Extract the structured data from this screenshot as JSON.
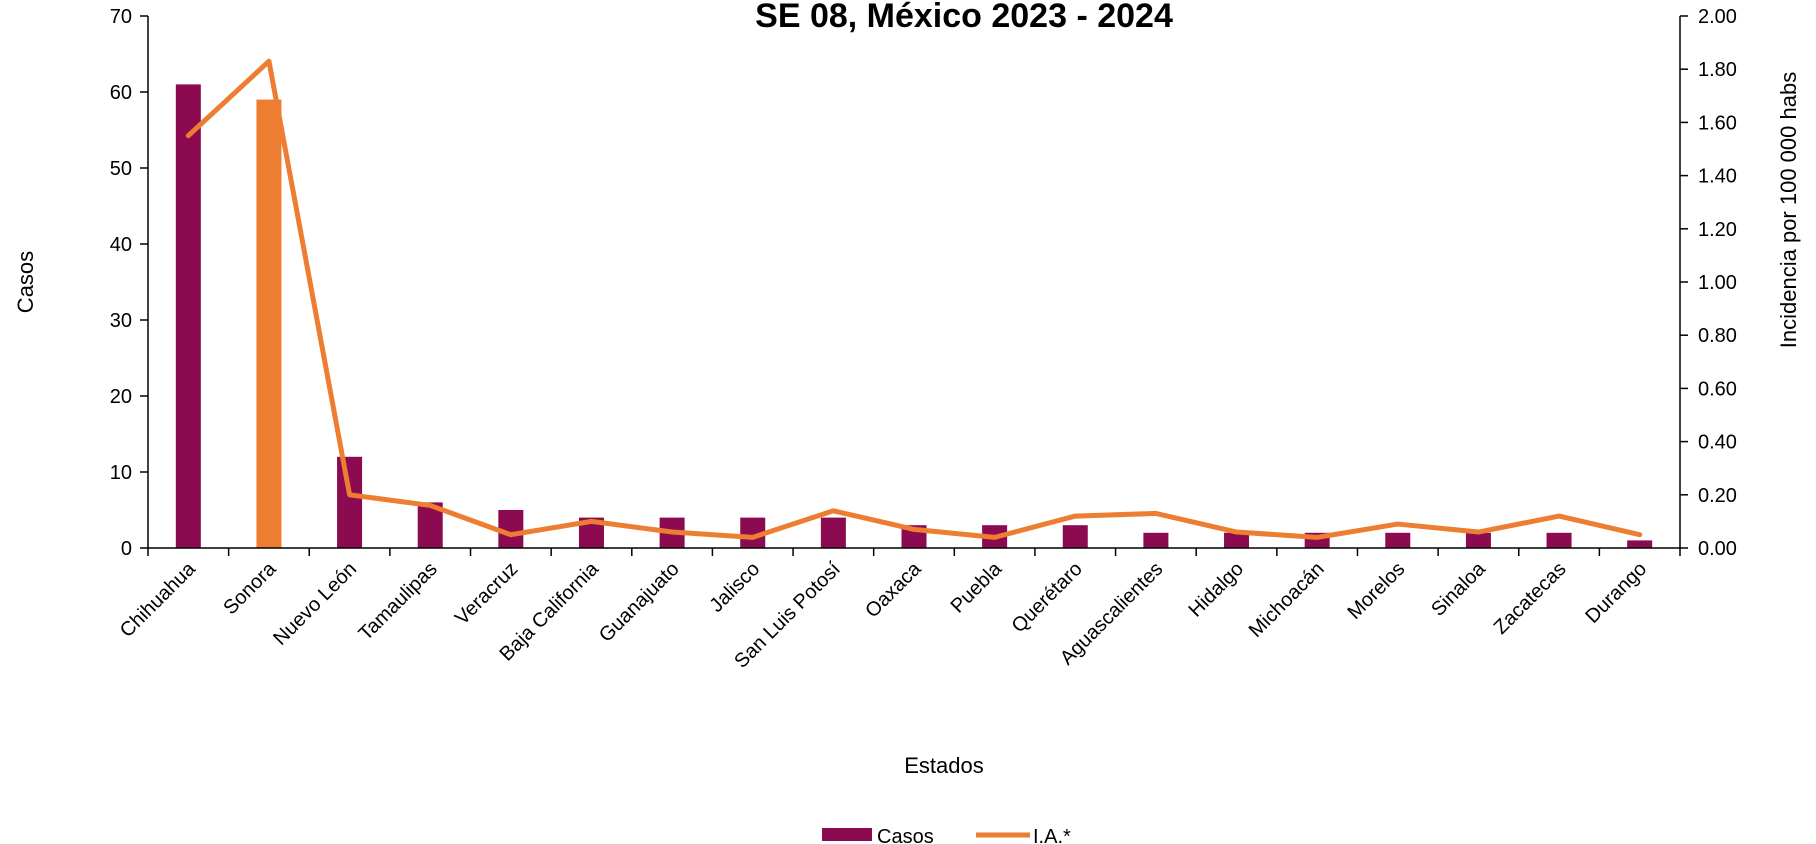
{
  "chart_data": {
    "type": "bar",
    "title": "SE 08, México 2023 - 2024",
    "xlabel": "Estados",
    "ylabel": "Casos",
    "y2label": "Incidencia por 100 000 habs",
    "ylim": [
      0,
      70
    ],
    "y2lim": [
      0,
      2.0
    ],
    "yticks": [
      "0",
      "10",
      "20",
      "30",
      "40",
      "50",
      "60",
      "70"
    ],
    "y2ticks": [
      "0.00",
      "0.20",
      "0.40",
      "0.60",
      "0.80",
      "1.00",
      "1.20",
      "1.40",
      "1.60",
      "1.80",
      "2.00"
    ],
    "categories": [
      "Chihuahua",
      "Sonora",
      "Nuevo León",
      "Tamaulipas",
      "Veracruz",
      "Baja California",
      "Guanajuato",
      "Jalisco",
      "San Luis Potosí",
      "Oaxaca",
      "Puebla",
      "Querétaro",
      "Aguascalientes",
      "Hidalgo",
      "Michoacán",
      "Morelos",
      "Sinaloa",
      "Zacatecas",
      "Durango"
    ],
    "series": [
      {
        "name": "Casos",
        "type": "bar",
        "axis": "left",
        "color": "#8B0A50",
        "highlight_color": "#ED7D31",
        "highlight_index": 1,
        "values": [
          61,
          59,
          12,
          6,
          5,
          4,
          4,
          4,
          4,
          3,
          3,
          3,
          2,
          2,
          2,
          2,
          2,
          2,
          1
        ]
      },
      {
        "name": "I.A.*",
        "type": "line",
        "axis": "right",
        "color": "#ED7D31",
        "values": [
          1.55,
          1.83,
          0.2,
          0.16,
          0.05,
          0.1,
          0.06,
          0.04,
          0.14,
          0.07,
          0.04,
          0.12,
          0.13,
          0.06,
          0.04,
          0.09,
          0.06,
          0.12,
          0.05
        ]
      }
    ],
    "grid": false,
    "legend_position": "bottom-center"
  }
}
